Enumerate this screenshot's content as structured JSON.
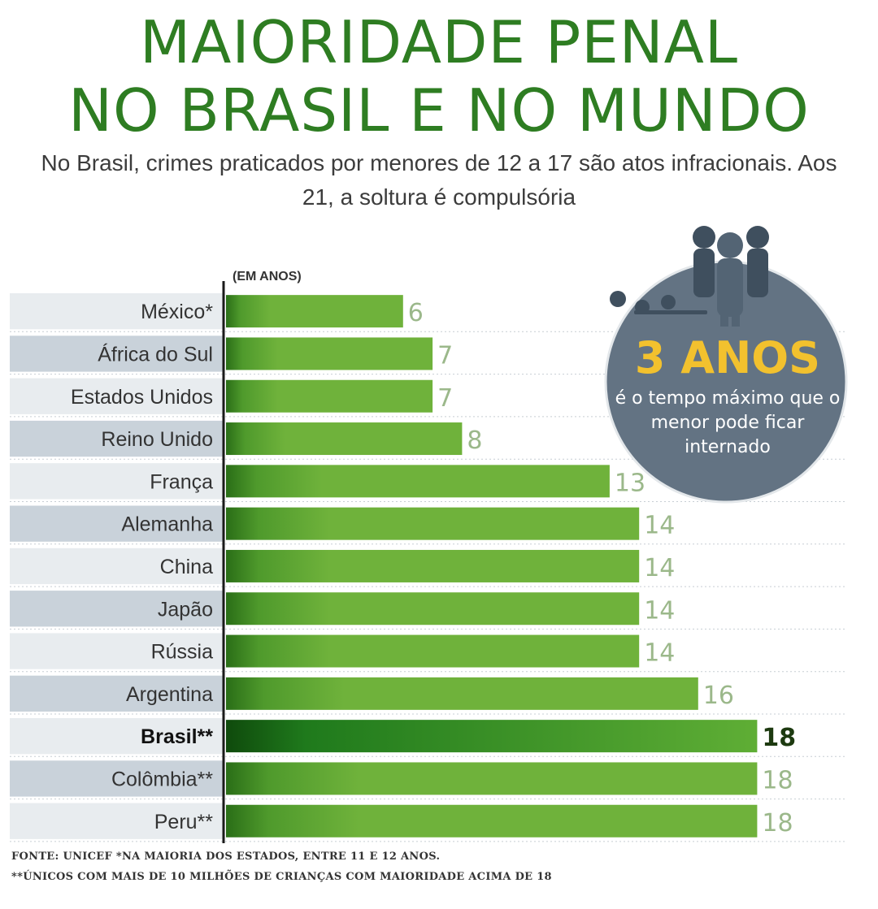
{
  "header": {
    "title_line1": "MAIORIDADE PENAL",
    "title_line2": "NO BRASIL E NO MUNDO",
    "subtitle": "No Brasil, crimes praticados por menores de 12 a 17 são atos infracionais. Aos  21, a soltura é compulsória"
  },
  "chart_data": {
    "type": "bar",
    "orientation": "horizontal",
    "unit_label": "(EM ANOS)",
    "categories": [
      "México*",
      "África do Sul",
      "Estados Unidos",
      "Reino Unido",
      "França",
      "Alemanha",
      "China",
      "Japão",
      "Rússia",
      "Argentina",
      "Brasil**",
      "Colômbia**",
      "Peru**"
    ],
    "values": [
      6,
      7,
      7,
      8,
      13,
      14,
      14,
      14,
      14,
      16,
      18,
      18,
      18
    ],
    "highlight": "Brasil**",
    "xlim": [
      0,
      18
    ],
    "colors": {
      "bar": "#6fb23b",
      "bar_dark": "#2a6e17",
      "highlight_bar": "#1f7a1c",
      "value_text": "#9bb88a",
      "highlight_text": "#1d3a10",
      "row_band_dark": "#c9d2da",
      "row_band_light": "#e8ecef"
    }
  },
  "bubble": {
    "headline": "3 ANOS",
    "text": "é o tempo máximo que o menor pode ficar internado",
    "icon": "children-group-icon",
    "color": "#637383"
  },
  "footer": {
    "source": "FONTE: UNICEF      *NA MAIORIA DOS ESTADOS, ENTRE 11 E 12 ANOS.",
    "note": "**ÚNICOS COM MAIS DE 10 MILHÕES DE CRIANÇAS COM MAIORIDADE ACIMA DE 18"
  }
}
